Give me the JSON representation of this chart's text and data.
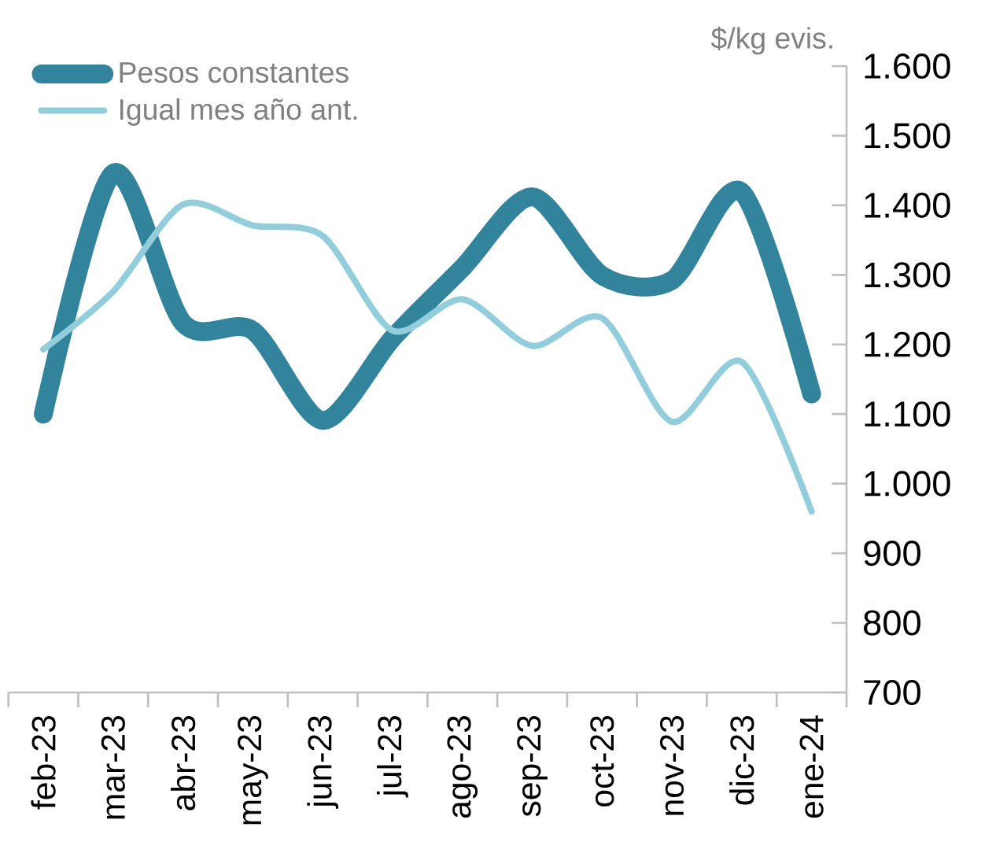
{
  "chart_data": {
    "type": "line",
    "ylabel": "$/kg evis.",
    "categories": [
      "feb-23",
      "mar-23",
      "abr-23",
      "may-23",
      "jun-23",
      "jul-23",
      "ago-23",
      "sep-23",
      "oct-23",
      "nov-23",
      "dic-23",
      "ene-24"
    ],
    "series": [
      {
        "name": "Pesos constantes",
        "color": "#31849b",
        "values": [
          1100,
          1446,
          1231,
          1220,
          1091,
          1209,
          1310,
          1412,
          1299,
          1292,
          1419,
          1129
        ]
      },
      {
        "name": "Igual mes año ant.",
        "color": "#92cddc",
        "values": [
          1193,
          1276,
          1401,
          1371,
          1356,
          1220,
          1265,
          1198,
          1238,
          1089,
          1175,
          960
        ]
      }
    ],
    "ylim": [
      700,
      1600
    ],
    "yticks": [
      {
        "value": 700,
        "label": "700"
      },
      {
        "value": 800,
        "label": "800"
      },
      {
        "value": 900,
        "label": "900"
      },
      {
        "value": 1000,
        "label": "1.000"
      },
      {
        "value": 1100,
        "label": "1.100"
      },
      {
        "value": 1200,
        "label": "1.200"
      },
      {
        "value": 1300,
        "label": "1.300"
      },
      {
        "value": 1400,
        "label": "1.400"
      },
      {
        "value": 1500,
        "label": "1.500"
      },
      {
        "value": 1600,
        "label": "1.600"
      }
    ],
    "grid": false,
    "legend": "top left",
    "marker": "none",
    "line_style": "solid"
  }
}
